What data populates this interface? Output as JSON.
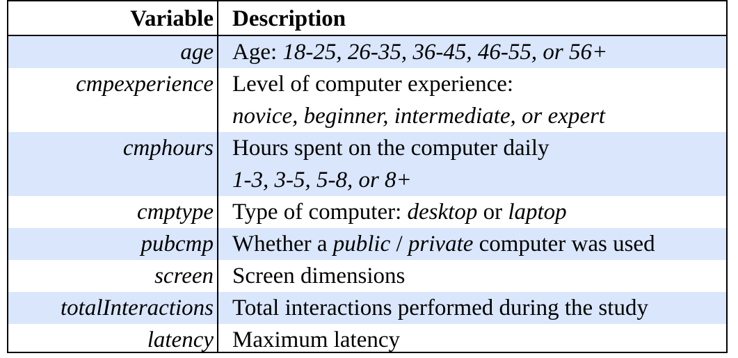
{
  "header": {
    "variable": "Variable",
    "description": "Description"
  },
  "rows": [
    {
      "variable": "age",
      "desc_lines": [
        [
          {
            "t": "Age: "
          },
          {
            "t": "18-25, 26-35, 36-45, 46-55, or 56+",
            "i": true
          }
        ]
      ],
      "shaded": true
    },
    {
      "variable": "cmpexperience",
      "desc_lines": [
        [
          {
            "t": "Level of computer experience:"
          }
        ],
        [
          {
            "t": "novice, beginner, intermediate, or expert",
            "i": true
          }
        ]
      ],
      "shaded": false
    },
    {
      "variable": "cmphours",
      "desc_lines": [
        [
          {
            "t": "Hours spent on the computer daily"
          }
        ],
        [
          {
            "t": "1-3, 3-5, 5-8, or 8+",
            "i": true
          }
        ]
      ],
      "shaded": true
    },
    {
      "variable": "cmptype",
      "desc_lines": [
        [
          {
            "t": "Type of computer: "
          },
          {
            "t": "desktop",
            "i": true
          },
          {
            "t": " or "
          },
          {
            "t": "laptop",
            "i": true
          }
        ]
      ],
      "shaded": false
    },
    {
      "variable": "pubcmp",
      "desc_lines": [
        [
          {
            "t": "Whether a "
          },
          {
            "t": "public",
            "i": true
          },
          {
            "t": " / "
          },
          {
            "t": "private",
            "i": true
          },
          {
            "t": " computer was used"
          }
        ]
      ],
      "shaded": true
    },
    {
      "variable": "screen",
      "desc_lines": [
        [
          {
            "t": "Screen dimensions"
          }
        ]
      ],
      "shaded": false
    },
    {
      "variable": "totalInteractions",
      "desc_lines": [
        [
          {
            "t": "Total interactions performed during the study"
          }
        ]
      ],
      "shaded": true
    },
    {
      "variable": "latency",
      "desc_lines": [
        [
          {
            "t": "Maximum latency"
          }
        ]
      ],
      "shaded": false
    }
  ],
  "colors": {
    "shade": "#d9e6fb",
    "rule": "#000000"
  }
}
